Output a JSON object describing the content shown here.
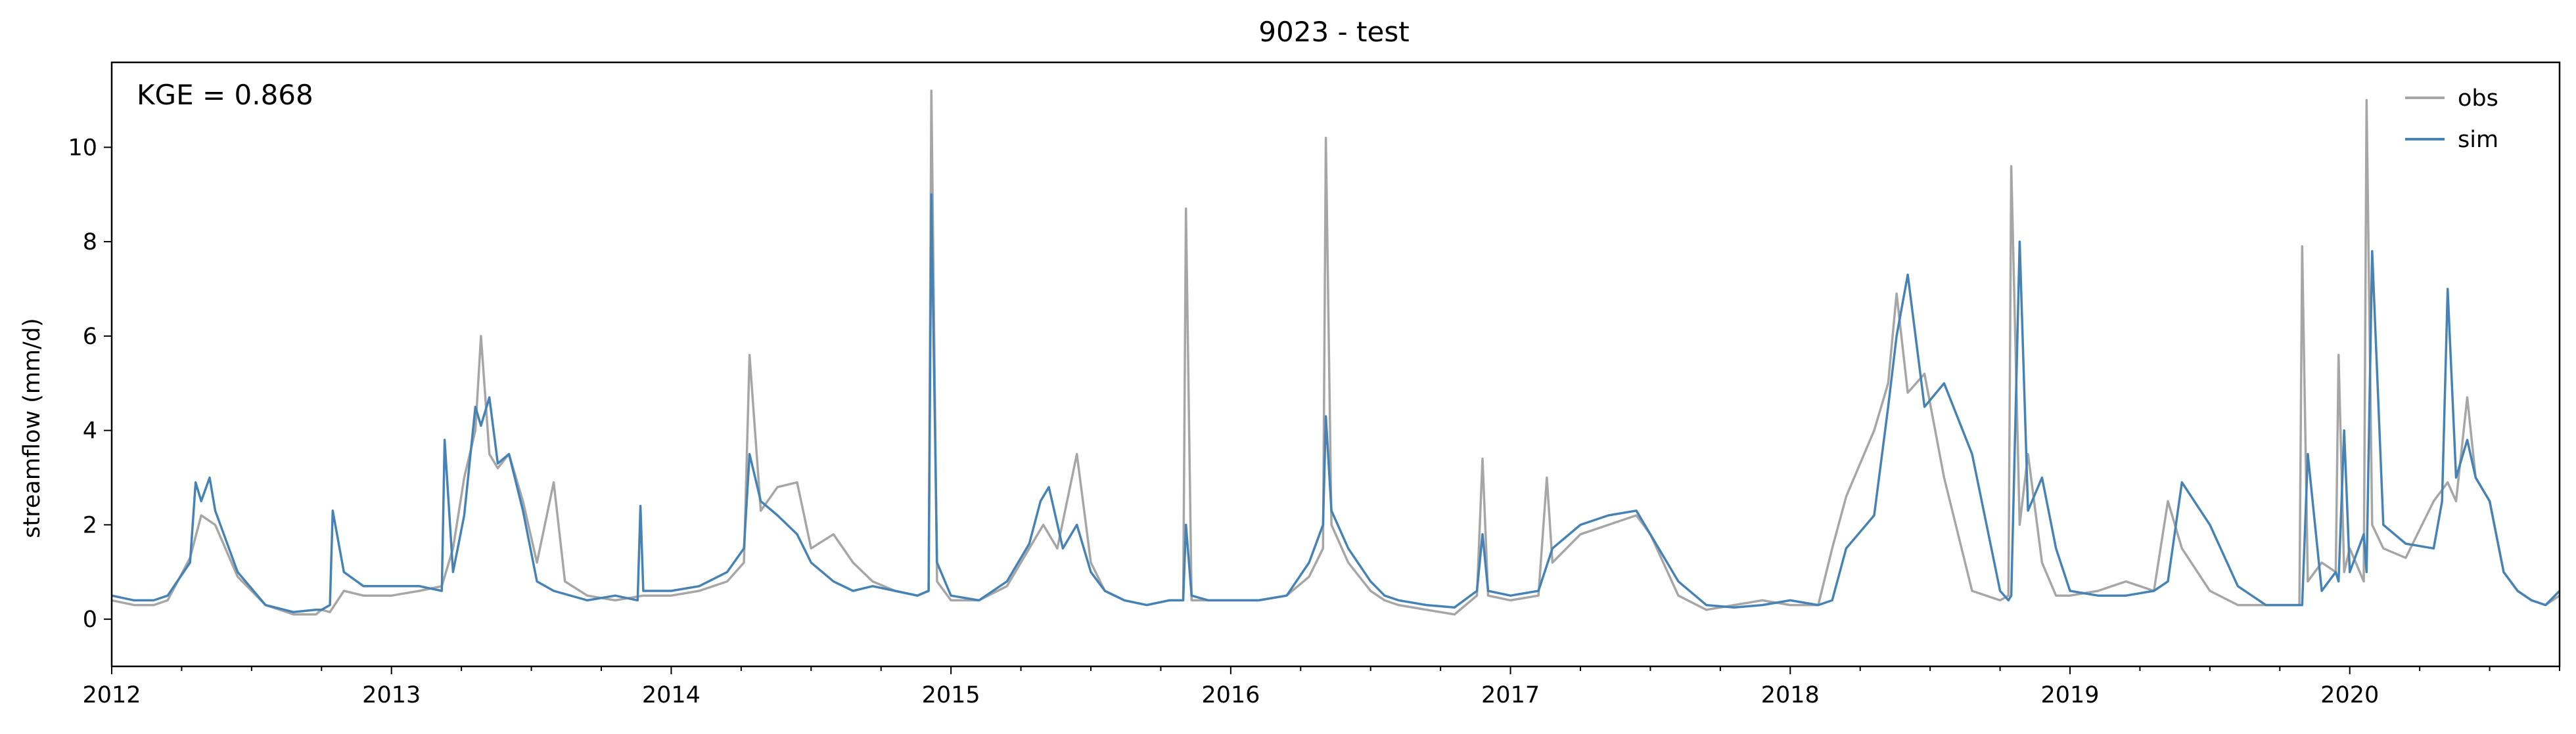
{
  "chart_data": {
    "type": "line",
    "title": "9023 - test",
    "xlabel": "",
    "ylabel": "streamflow (mm/d)",
    "xlim": [
      2012.0,
      2020.75
    ],
    "ylim": [
      -1.0,
      11.8
    ],
    "x_ticks": [
      "2012",
      "2013",
      "2014",
      "2015",
      "2016",
      "2017",
      "2018",
      "2019",
      "2020"
    ],
    "y_ticks": [
      "0",
      "2",
      "4",
      "6",
      "8",
      "10"
    ],
    "annotation": "KGE = 0.868",
    "legend": {
      "placement": "top-right",
      "entries": [
        "obs",
        "sim"
      ]
    },
    "grid": false,
    "series": [
      {
        "name": "obs",
        "color": "#a6a6a6",
        "x": [
          2012.0,
          2012.08,
          2012.15,
          2012.2,
          2012.28,
          2012.32,
          2012.37,
          2012.45,
          2012.55,
          2012.65,
          2012.73,
          2012.75,
          2012.78,
          2012.83,
          2012.9,
          2013.0,
          2013.1,
          2013.18,
          2013.22,
          2013.26,
          2013.3,
          2013.32,
          2013.35,
          2013.38,
          2013.42,
          2013.47,
          2013.52,
          2013.58,
          2013.62,
          2013.7,
          2013.8,
          2013.9,
          2014.0,
          2014.1,
          2014.2,
          2014.26,
          2014.28,
          2014.32,
          2014.38,
          2014.45,
          2014.5,
          2014.58,
          2014.65,
          2014.72,
          2014.8,
          2014.88,
          2014.92,
          2014.93,
          2014.95,
          2015.0,
          2015.1,
          2015.2,
          2015.28,
          2015.33,
          2015.38,
          2015.45,
          2015.5,
          2015.55,
          2015.62,
          2015.7,
          2015.78,
          2015.83,
          2015.84,
          2015.86,
          2015.92,
          2016.0,
          2016.1,
          2016.2,
          2016.28,
          2016.33,
          2016.34,
          2016.36,
          2016.42,
          2016.5,
          2016.55,
          2016.6,
          2016.7,
          2016.8,
          2016.88,
          2016.9,
          2016.92,
          2017.0,
          2017.1,
          2017.13,
          2017.15,
          2017.25,
          2017.35,
          2017.45,
          2017.5,
          2017.6,
          2017.7,
          2017.8,
          2017.9,
          2018.0,
          2018.1,
          2018.15,
          2018.2,
          2018.3,
          2018.35,
          2018.38,
          2018.42,
          2018.48,
          2018.55,
          2018.65,
          2018.75,
          2018.78,
          2018.79,
          2018.82,
          2018.85,
          2018.9,
          2018.95,
          2019.0,
          2019.1,
          2019.2,
          2019.3,
          2019.35,
          2019.4,
          2019.5,
          2019.6,
          2019.7,
          2019.78,
          2019.82,
          2019.83,
          2019.85,
          2019.9,
          2019.95,
          2019.96,
          2019.98,
          2020.0,
          2020.05,
          2020.06,
          2020.08,
          2020.12,
          2020.2,
          2020.3,
          2020.35,
          2020.38,
          2020.42,
          2020.45,
          2020.5,
          2020.55,
          2020.6,
          2020.65,
          2020.7,
          2020.75
        ],
        "values": [
          0.4,
          0.3,
          0.3,
          0.4,
          1.3,
          2.2,
          2.0,
          0.9,
          0.3,
          0.1,
          0.1,
          0.2,
          0.15,
          0.6,
          0.5,
          0.5,
          0.6,
          0.7,
          1.5,
          3.0,
          4.0,
          6.0,
          3.5,
          3.2,
          3.5,
          2.5,
          1.2,
          2.9,
          0.8,
          0.5,
          0.4,
          0.5,
          0.5,
          0.6,
          0.8,
          1.2,
          5.6,
          2.3,
          2.8,
          2.9,
          1.5,
          1.8,
          1.2,
          0.8,
          0.6,
          0.5,
          0.6,
          11.2,
          0.8,
          0.4,
          0.4,
          0.7,
          1.5,
          2.0,
          1.5,
          3.5,
          1.2,
          0.6,
          0.4,
          0.3,
          0.4,
          0.4,
          8.7,
          0.4,
          0.4,
          0.4,
          0.4,
          0.5,
          0.9,
          1.5,
          10.2,
          2.0,
          1.2,
          0.6,
          0.4,
          0.3,
          0.2,
          0.1,
          0.5,
          3.4,
          0.5,
          0.4,
          0.5,
          3.0,
          1.2,
          1.8,
          2.0,
          2.2,
          1.8,
          0.5,
          0.2,
          0.3,
          0.4,
          0.3,
          0.3,
          1.5,
          2.6,
          4.0,
          5.0,
          6.9,
          4.8,
          5.2,
          3.0,
          0.6,
          0.4,
          0.5,
          9.6,
          2.0,
          3.5,
          1.2,
          0.5,
          0.5,
          0.6,
          0.8,
          0.6,
          2.5,
          1.5,
          0.6,
          0.3,
          0.3,
          0.3,
          0.3,
          7.9,
          0.8,
          1.2,
          1.0,
          5.6,
          1.0,
          1.5,
          0.8,
          11.0,
          2.0,
          1.5,
          1.3,
          2.5,
          2.9,
          2.5,
          4.7,
          3.0,
          2.5,
          1.0,
          0.6,
          0.4,
          0.3,
          0.5
        ]
      },
      {
        "name": "sim",
        "color": "#4682b4",
        "x": [
          2012.0,
          2012.08,
          2012.15,
          2012.2,
          2012.28,
          2012.3,
          2012.32,
          2012.35,
          2012.37,
          2012.45,
          2012.55,
          2012.65,
          2012.73,
          2012.75,
          2012.78,
          2012.79,
          2012.83,
          2012.9,
          2013.0,
          2013.1,
          2013.18,
          2013.19,
          2013.22,
          2013.26,
          2013.3,
          2013.32,
          2013.35,
          2013.38,
          2013.42,
          2013.47,
          2013.52,
          2013.58,
          2013.7,
          2013.8,
          2013.88,
          2013.89,
          2013.9,
          2014.0,
          2014.1,
          2014.2,
          2014.26,
          2014.28,
          2014.32,
          2014.38,
          2014.45,
          2014.5,
          2014.58,
          2014.65,
          2014.72,
          2014.8,
          2014.88,
          2014.92,
          2014.93,
          2014.95,
          2015.0,
          2015.1,
          2015.2,
          2015.28,
          2015.32,
          2015.35,
          2015.4,
          2015.45,
          2015.5,
          2015.55,
          2015.62,
          2015.7,
          2015.78,
          2015.83,
          2015.84,
          2015.86,
          2015.92,
          2016.0,
          2016.1,
          2016.2,
          2016.28,
          2016.33,
          2016.34,
          2016.36,
          2016.42,
          2016.5,
          2016.55,
          2016.6,
          2016.7,
          2016.8,
          2016.88,
          2016.9,
          2016.92,
          2017.0,
          2017.1,
          2017.15,
          2017.25,
          2017.35,
          2017.45,
          2017.5,
          2017.6,
          2017.7,
          2017.8,
          2017.9,
          2018.0,
          2018.1,
          2018.15,
          2018.2,
          2018.3,
          2018.35,
          2018.38,
          2018.42,
          2018.48,
          2018.55,
          2018.65,
          2018.75,
          2018.78,
          2018.79,
          2018.82,
          2018.85,
          2018.9,
          2018.95,
          2019.0,
          2019.1,
          2019.2,
          2019.3,
          2019.35,
          2019.4,
          2019.5,
          2019.6,
          2019.7,
          2019.78,
          2019.82,
          2019.83,
          2019.85,
          2019.9,
          2019.95,
          2019.96,
          2019.98,
          2020.0,
          2020.05,
          2020.06,
          2020.08,
          2020.12,
          2020.2,
          2020.3,
          2020.33,
          2020.35,
          2020.38,
          2020.42,
          2020.45,
          2020.5,
          2020.55,
          2020.6,
          2020.65,
          2020.7,
          2020.75
        ],
        "values": [
          0.5,
          0.4,
          0.4,
          0.5,
          1.2,
          2.9,
          2.5,
          3.0,
          2.3,
          1.0,
          0.3,
          0.15,
          0.2,
          0.2,
          0.3,
          2.3,
          1.0,
          0.7,
          0.7,
          0.7,
          0.6,
          3.8,
          1.0,
          2.2,
          4.5,
          4.1,
          4.7,
          3.3,
          3.5,
          2.3,
          0.8,
          0.6,
          0.4,
          0.5,
          0.4,
          2.4,
          0.6,
          0.6,
          0.7,
          1.0,
          1.5,
          3.5,
          2.5,
          2.2,
          1.8,
          1.2,
          0.8,
          0.6,
          0.7,
          0.6,
          0.5,
          0.6,
          9.0,
          1.2,
          0.5,
          0.4,
          0.8,
          1.6,
          2.5,
          2.8,
          1.5,
          2.0,
          1.0,
          0.6,
          0.4,
          0.3,
          0.4,
          0.4,
          2.0,
          0.5,
          0.4,
          0.4,
          0.4,
          0.5,
          1.2,
          2.0,
          4.3,
          2.3,
          1.5,
          0.8,
          0.5,
          0.4,
          0.3,
          0.25,
          0.6,
          1.8,
          0.6,
          0.5,
          0.6,
          1.5,
          2.0,
          2.2,
          2.3,
          1.8,
          0.8,
          0.3,
          0.25,
          0.3,
          0.4,
          0.3,
          0.4,
          1.5,
          2.2,
          4.5,
          6.0,
          7.3,
          4.5,
          5.0,
          3.5,
          0.6,
          0.4,
          0.5,
          8.0,
          2.3,
          3.0,
          1.5,
          0.6,
          0.5,
          0.5,
          0.6,
          0.8,
          2.9,
          2.0,
          0.7,
          0.3,
          0.3,
          0.3,
          0.3,
          3.5,
          0.6,
          1.0,
          0.8,
          4.0,
          1.0,
          1.8,
          1.0,
          7.8,
          2.0,
          1.6,
          1.5,
          2.5,
          7.0,
          3.0,
          3.8,
          3.0,
          2.5,
          1.0,
          0.6,
          0.4,
          0.3,
          0.6
        ]
      }
    ]
  }
}
